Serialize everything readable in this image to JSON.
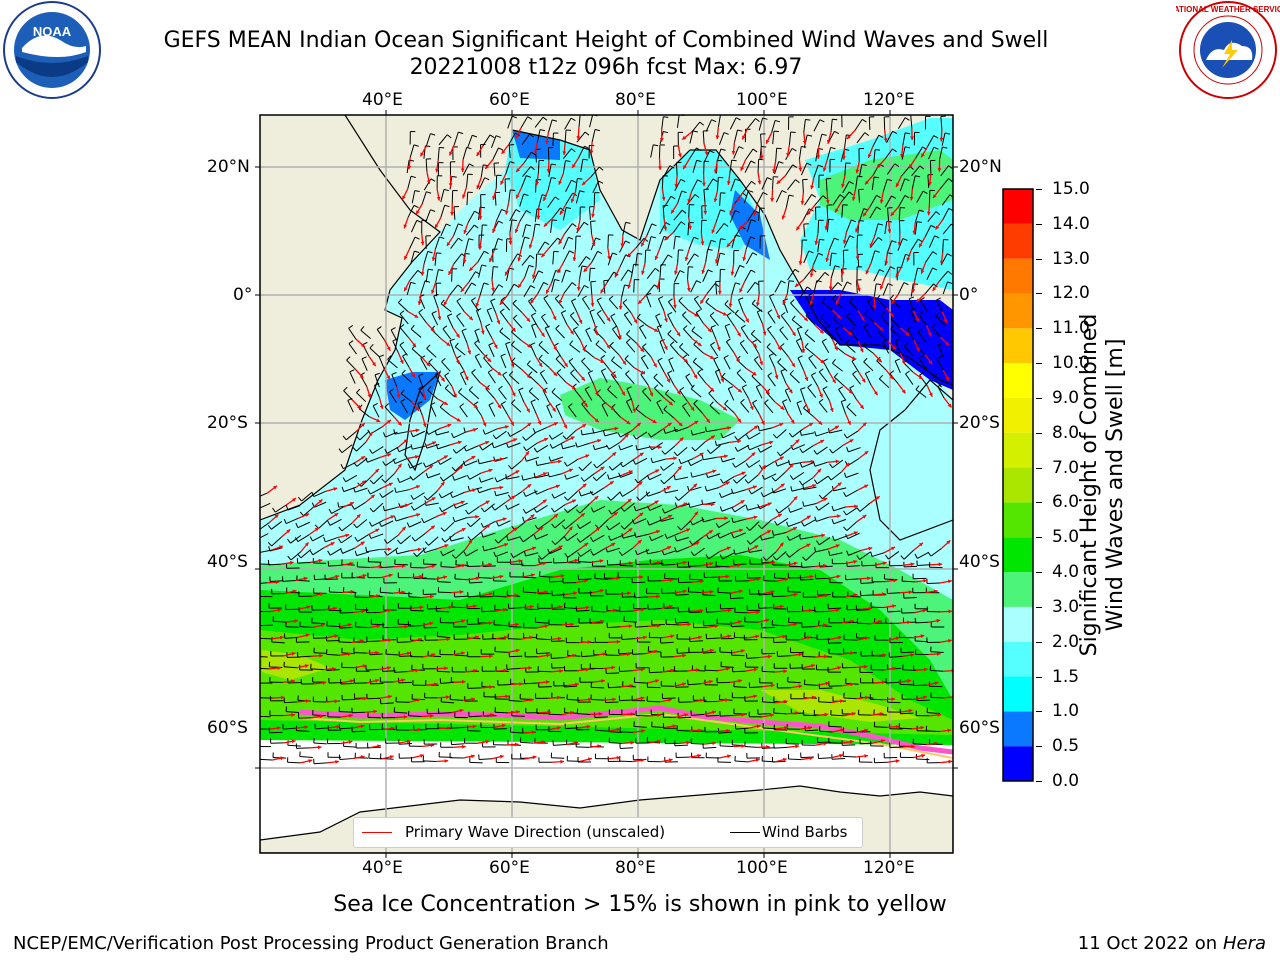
{
  "header": {
    "title": "GEFS MEAN Indian Ocean Significant Height of Combined Wind Waves and Swell",
    "subtitle": "20221008 t12z 096h fcst   Max: 6.97"
  },
  "logos": {
    "left": {
      "name": "noaa-logo",
      "text": "NOAA"
    },
    "right": {
      "name": "nws-logo",
      "text": "NATIONAL WEATHER SERVICE"
    }
  },
  "map": {
    "lon_ticks": [
      "40°E",
      "60°E",
      "80°E",
      "100°E",
      "120°E"
    ],
    "lat_ticks": [
      "20°N",
      "0°",
      "20°S",
      "40°S",
      "60°S"
    ],
    "lon_range": [
      20,
      130
    ],
    "lat_range": [
      -78,
      28
    ],
    "colors": {
      "land": "#efeedd",
      "ocean_calm": "#aaffff",
      "grid": "#b0b0b0"
    }
  },
  "legend": {
    "primary_wave": "Primary Wave Direction (unscaled)",
    "wind_barbs": "Wind Barbs",
    "primary_wave_color": "#ff0000",
    "wind_barbs_color": "#000000"
  },
  "colorbar": {
    "label_line1": "Significant Height of Combined",
    "label_line2": "Wind Waves and Swell [m]",
    "ticks": [
      "0.0",
      "0.5",
      "1.0",
      "1.5",
      "2.0",
      "3.0",
      "4.0",
      "5.0",
      "6.0",
      "7.0",
      "8.0",
      "9.0",
      "10.0",
      "11.0",
      "12.0",
      "13.0",
      "14.0",
      "15.0"
    ],
    "colors": [
      "#0000ff",
      "#0a78ff",
      "#00ffff",
      "#55ffff",
      "#aaffff",
      "#4cf57a",
      "#00e600",
      "#55e600",
      "#aae600",
      "#d2f000",
      "#f0f000",
      "#ffff00",
      "#ffc800",
      "#ff9600",
      "#ff7800",
      "#ff3c00",
      "#ff0000"
    ]
  },
  "note": "Sea Ice Concentration > 15% is shown in pink to yellow",
  "footer": {
    "left": "NCEP/EMC/Verification Post Processing Product Generation Branch",
    "right_prefix": "11 Oct 2022 on ",
    "right_host": "Hera"
  }
}
